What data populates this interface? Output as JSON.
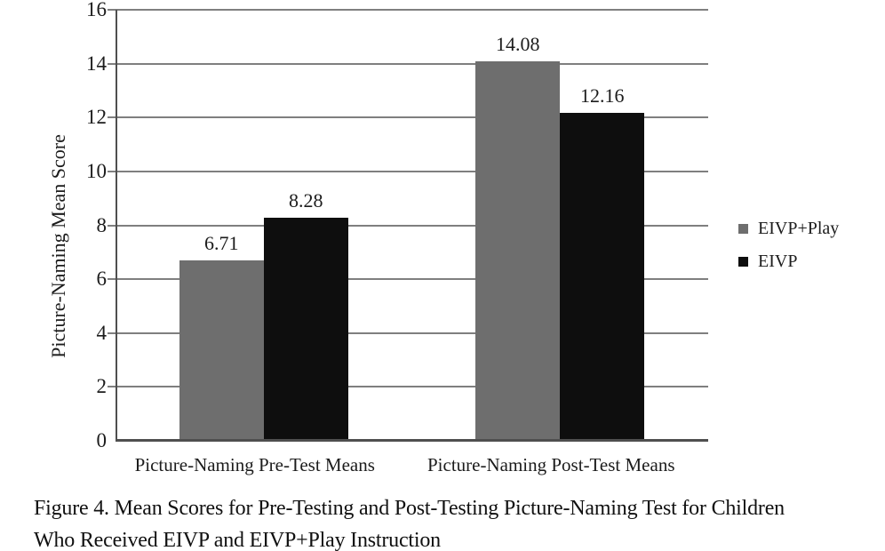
{
  "figure": {
    "caption_line1": "Figure 4. Mean Scores for Pre-Testing and Post-Testing Picture-Naming Test for Children",
    "caption_line2": "Who Received EIVP and EIVP+Play Instruction"
  },
  "chart_data": {
    "type": "bar",
    "title": "",
    "xlabel": "",
    "ylabel": "Picture-Naming Mean Score",
    "categories": [
      "Picture-Naming Pre-Test Means",
      "Picture-Naming Post-Test Means"
    ],
    "series": [
      {
        "name": "EIVP+Play",
        "color": "#6e6e6e",
        "values": [
          6.71,
          14.08
        ]
      },
      {
        "name": "EIVP",
        "color": "#0e0e0e",
        "values": [
          8.28,
          12.16
        ]
      }
    ],
    "y_axis": {
      "min": 0,
      "max": 16,
      "step": 2
    },
    "grid": true,
    "legend_position": "right",
    "value_labels_shown": true
  },
  "colors": {
    "gridline": "#7f7f7f",
    "axis": "#4f4f4f",
    "text": "#1c1c1c",
    "background": "#ffffff"
  }
}
